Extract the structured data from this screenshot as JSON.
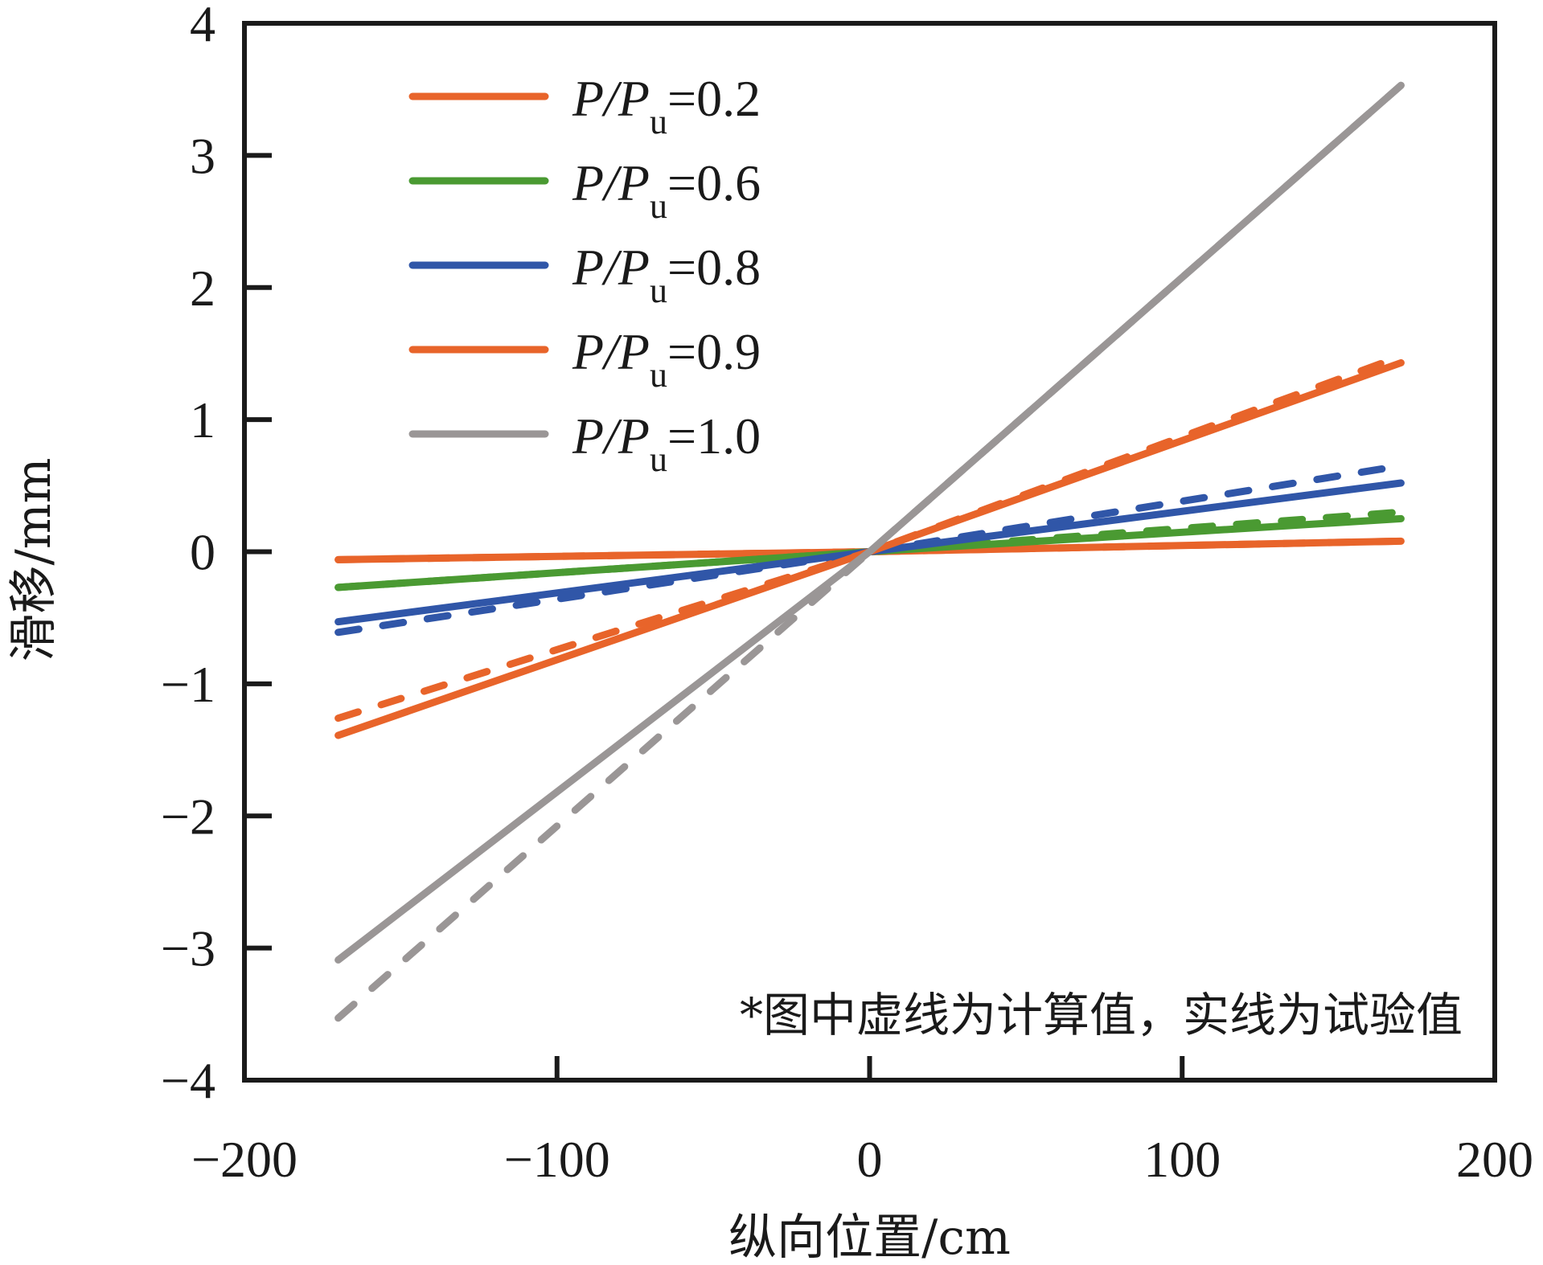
{
  "chart_data": {
    "type": "line",
    "title": "",
    "xlabel": "纵向位置/cm",
    "ylabel": "滑移/mm",
    "xlim": [
      -200,
      200
    ],
    "ylim": [
      -4,
      4
    ],
    "xticks": [
      -200,
      -100,
      0,
      100,
      200
    ],
    "xtick_labels": [
      "−200",
      "−100",
      "0",
      "100",
      "200"
    ],
    "yticks": [
      4,
      3,
      2,
      1,
      0,
      -1,
      -2,
      -3,
      -4
    ],
    "ytick_labels": [
      "4",
      "3",
      "2",
      "1",
      "0",
      "−1",
      "−2",
      "−3",
      "−4"
    ],
    "grid": false,
    "legend_position": "top-left",
    "annotation": "*图中虚线为计算值，实线为试验值",
    "series": [
      {
        "name": "P/Pu=0.2",
        "legend": {
          "main": "P/P",
          "sub": "u",
          "value": "=0.2"
        },
        "color": "#E8642A",
        "test": {
          "x": [
            -170,
            0,
            170
          ],
          "y": [
            -0.06,
            0,
            0.08
          ]
        },
        "calc": {
          "x": [
            -170,
            0,
            170
          ],
          "y": [
            -0.06,
            0,
            0.08
          ]
        }
      },
      {
        "name": "P/Pu=0.6",
        "legend": {
          "main": "P/P",
          "sub": "u",
          "value": "=0.6"
        },
        "color": "#4A9A32",
        "test": {
          "x": [
            -170,
            0,
            170
          ],
          "y": [
            -0.27,
            0,
            0.25
          ]
        },
        "calc": {
          "x": [
            -170,
            0,
            170
          ],
          "y": [
            -0.27,
            0,
            0.3
          ]
        }
      },
      {
        "name": "P/Pu=0.8",
        "legend": {
          "main": "P/P",
          "sub": "u",
          "value": "=0.8"
        },
        "color": "#3056A8",
        "test": {
          "x": [
            -170,
            0,
            170
          ],
          "y": [
            -0.53,
            0,
            0.52
          ]
        },
        "calc": {
          "x": [
            -170,
            0,
            170
          ],
          "y": [
            -0.61,
            0,
            0.65
          ]
        }
      },
      {
        "name": "P/Pu=0.9",
        "legend": {
          "main": "P/P",
          "sub": "u",
          "value": "=0.9"
        },
        "color": "#E8642A",
        "test": {
          "x": [
            -170,
            0,
            170
          ],
          "y": [
            -1.39,
            0,
            1.43
          ]
        },
        "calc": {
          "x": [
            -170,
            0,
            170
          ],
          "y": [
            -1.26,
            0,
            1.48
          ]
        }
      },
      {
        "name": "P/Pu=1.0",
        "legend": {
          "main": "P/P",
          "sub": "u",
          "value": "=1.0"
        },
        "color": "#9A9696",
        "test": {
          "x": [
            -170,
            0,
            170
          ],
          "y": [
            -3.09,
            0,
            3.53
          ]
        },
        "calc": {
          "x": [
            -170,
            0,
            170
          ],
          "y": [
            -3.53,
            0,
            3.53
          ]
        }
      }
    ]
  }
}
